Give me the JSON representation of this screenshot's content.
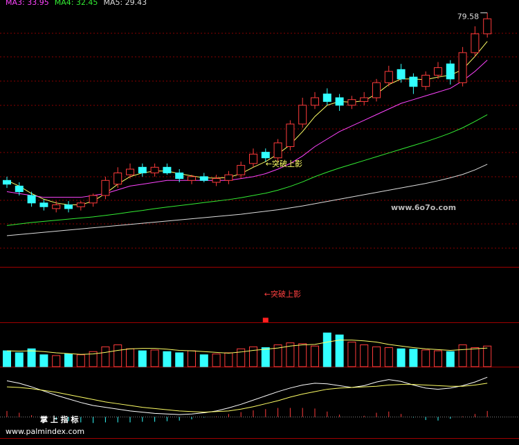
{
  "chart_data": [
    {
      "type": "candlestick",
      "watermark": "www.6o7o.com",
      "max_label": "79.58",
      "annotation": "←突破上影",
      "ylim": [
        12,
        83
      ],
      "up_color": "#ff3b3b",
      "down_color": "#33ffff",
      "open": [
        35,
        33.5,
        31,
        29,
        27.5,
        28.5,
        28,
        29,
        31,
        34,
        36.5,
        38.5,
        37,
        38.5,
        37,
        35,
        36,
        34.5,
        35,
        36.5,
        39.5,
        42.5,
        41,
        44,
        50,
        55,
        58,
        57,
        55,
        56,
        57,
        61,
        64.5,
        62.5,
        60,
        63,
        66,
        61,
        69,
        74
      ],
      "high": [
        36,
        34.5,
        32,
        30,
        29.5,
        29.5,
        29.5,
        31.5,
        36,
        38.5,
        39.5,
        39.5,
        39.5,
        39.5,
        38,
        36.5,
        37,
        36.5,
        37.5,
        40,
        43.5,
        43.5,
        46,
        51,
        57,
        58.5,
        59.5,
        58,
        57.5,
        58.5,
        62,
        65.5,
        66,
        63.5,
        64,
        66.5,
        67,
        70.5,
        76,
        79.58
      ],
      "low": [
        33,
        31,
        28,
        27,
        26.5,
        26.5,
        27,
        28,
        30,
        33,
        35.5,
        36,
        36,
        36.5,
        34.5,
        34,
        34.5,
        33.5,
        34,
        35.5,
        38.5,
        40,
        40,
        43,
        49,
        54,
        55,
        53.5,
        54,
        55,
        56,
        60,
        61,
        58,
        59,
        62,
        60.5,
        60,
        68,
        73
      ],
      "close": [
        34,
        32,
        29,
        28,
        28.5,
        27.5,
        29,
        31,
        35,
        37,
        38,
        37,
        38.5,
        37,
        35.5,
        36,
        35,
        35.5,
        36.5,
        39,
        42,
        41,
        45,
        50,
        55,
        57,
        56,
        55,
        56.5,
        57,
        61,
        64,
        62,
        60,
        63,
        65,
        62,
        69,
        74,
        78
      ],
      "series": [
        {
          "color": "#ffff66",
          "values": [
            35,
            33.5,
            31.5,
            30,
            29,
            28.5,
            28.5,
            29.5,
            31.5,
            34,
            36,
            37,
            37.5,
            37.5,
            36.8,
            36.2,
            35.7,
            35.6,
            35.8,
            36.8,
            38.5,
            40,
            42,
            44.5,
            48,
            52,
            55,
            56,
            55.8,
            56.2,
            58,
            60.5,
            62,
            62,
            61.8,
            62.5,
            63,
            64.5,
            68,
            72
          ]
        },
        {
          "name": "MA3: 33.95",
          "color": "#ff44ff",
          "values": [
            32,
            31.5,
            31,
            30.5,
            30.5,
            30.5,
            30.5,
            31,
            31.5,
            32.5,
            33.5,
            34,
            34.5,
            35,
            35,
            35,
            35,
            35,
            35,
            35.5,
            36,
            36.8,
            38,
            39.5,
            41.5,
            44,
            46,
            48,
            49.5,
            51,
            52.5,
            54,
            55.5,
            56.5,
            57.5,
            58.5,
            59.5,
            61.5,
            64,
            67
          ]
        },
        {
          "name": "MA4: 32.45",
          "color": "#33ee33",
          "values": [
            23,
            23.4,
            23.8,
            24.1,
            24.4,
            24.7,
            25,
            25.3,
            25.7,
            26.1,
            26.6,
            27,
            27.5,
            27.9,
            28.3,
            28.7,
            29.1,
            29.5,
            29.9,
            30.4,
            31,
            31.6,
            32.4,
            33.4,
            34.6,
            36,
            37.2,
            38.3,
            39.3,
            40.3,
            41.3,
            42.3,
            43.3,
            44.3,
            45.3,
            46.4,
            47.6,
            49,
            50.7,
            52.5
          ]
        },
        {
          "name": "MA5: 29.43",
          "color": "#dddddd",
          "values": [
            20.3,
            20.6,
            20.9,
            21.2,
            21.5,
            21.8,
            22.1,
            22.4,
            22.7,
            23,
            23.3,
            23.6,
            23.9,
            24.2,
            24.5,
            24.8,
            25.1,
            25.4,
            25.7,
            26,
            26.4,
            26.8,
            27.2,
            27.7,
            28.2,
            28.8,
            29.4,
            30,
            30.6,
            31.2,
            31.8,
            32.4,
            33,
            33.6,
            34.2,
            34.9,
            35.7,
            36.6,
            37.8,
            39.3
          ]
        }
      ]
    },
    {
      "type": "signal",
      "annotation": "←突破上影",
      "x": [
        21
      ],
      "values": [
        1
      ],
      "ylim": [
        0,
        12
      ],
      "color": "#ff2020"
    },
    {
      "type": "volume",
      "ylim": [
        0,
        110
      ],
      "values": [
        40,
        35,
        45,
        30,
        28,
        32,
        30,
        38,
        50,
        55,
        45,
        40,
        42,
        38,
        35,
        40,
        30,
        32,
        35,
        45,
        50,
        48,
        55,
        60,
        58,
        52,
        85,
        80,
        62,
        55,
        50,
        48,
        45,
        44,
        42,
        40,
        38,
        55,
        48,
        52
      ],
      "series": [
        {
          "color": "#ffff66",
          "values": [
            40,
            39,
            40,
            38,
            35,
            33,
            31,
            32,
            36,
            41,
            45,
            46,
            46,
            44,
            41,
            40,
            38,
            36,
            34,
            37,
            41,
            44,
            47,
            52,
            55,
            56,
            62,
            67,
            67,
            65,
            62,
            56,
            52,
            48,
            45,
            43,
            41,
            43,
            45,
            47
          ]
        }
      ]
    },
    {
      "type": "macd",
      "ylim": [
        -1.2,
        8
      ],
      "footer_title": "掌 上 指 标",
      "footer_url": "www.palmindex.com",
      "hist": [
        1,
        0.7,
        0.3,
        -0.1,
        -0.5,
        -0.7,
        -0.9,
        -1,
        -0.9,
        -0.9,
        -0.9,
        -0.8,
        -0.8,
        -0.7,
        -0.6,
        -0.4,
        -0.1,
        0.1,
        0.5,
        0.8,
        1.1,
        1.3,
        1.5,
        1.5,
        1.5,
        1.4,
        0.9,
        0.4,
        0,
        0.2,
        0.7,
        0.9,
        0.5,
        -0.1,
        -0.5,
        -0.6,
        -0.3,
        0.1,
        0.5,
        1
      ],
      "series": [
        {
          "color": "#ffffff",
          "values": [
            6,
            5.6,
            5,
            4.3,
            3.6,
            3,
            2.4,
            1.9,
            1.6,
            1.3,
            1,
            0.8,
            0.6,
            0.5,
            0.4,
            0.5,
            0.7,
            1,
            1.5,
            2.1,
            2.8,
            3.5,
            4.2,
            4.8,
            5.3,
            5.6,
            5.5,
            5.2,
            4.9,
            5.2,
            5.8,
            6.2,
            5.9,
            5.3,
            4.8,
            4.6,
            4.8,
            5.2,
            5.8,
            6.6
          ]
        },
        {
          "color": "#ffff66",
          "values": [
            5,
            4.9,
            4.7,
            4.4,
            4.1,
            3.7,
            3.3,
            2.9,
            2.5,
            2.2,
            1.9,
            1.6,
            1.4,
            1.2,
            1,
            0.9,
            0.8,
            0.9,
            1,
            1.3,
            1.7,
            2.2,
            2.7,
            3.3,
            3.8,
            4.2,
            4.6,
            4.8,
            4.9,
            5,
            5.1,
            5.3,
            5.4,
            5.4,
            5.3,
            5.2,
            5.1,
            5.1,
            5.3,
            5.6
          ]
        }
      ]
    }
  ]
}
